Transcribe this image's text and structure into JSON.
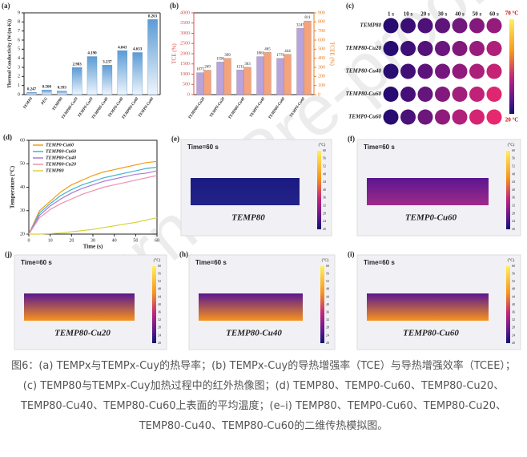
{
  "watermark": "Journal Pre-proof",
  "chart_data": [
    {
      "type": "bar",
      "panel_label": "(a)",
      "y_label": "Thermal Conductivity (W/(m·K))",
      "categories": [
        "TEMP0",
        "PEG",
        "TEMP80",
        "TEMP80-Cu20",
        "TEMP0-Cu20",
        "TEMP80-Cu40",
        "TEMP0-Cu40",
        "TEMP80-Cu60",
        "TEMP0-Cu60"
      ],
      "values": [
        0.247,
        0.5,
        0.393,
        2.983,
        4.19,
        3.237,
        4.843,
        4.633,
        8.263
      ],
      "value_labels": [
        "0.247",
        "0.500",
        "0.393",
        "2.983",
        "4.190",
        "3.237",
        "4.843",
        "4.633",
        "8.263"
      ],
      "color": "#5b9bd5",
      "ylim": [
        0,
        9
      ],
      "yticks": [
        0,
        1,
        2,
        3,
        4,
        5,
        6,
        7,
        8,
        9
      ]
    },
    {
      "type": "bar",
      "panel_label": "(b)",
      "categories": [
        "TEMP80-Cu20",
        "TEMP0-Cu20",
        "TEMP80-Cu40",
        "TEMP0-Cu40",
        "TEMP80-Cu60",
        "TEMP0-Cu60"
      ],
      "series": [
        {
          "name": "TCE (%)",
          "color": "#b9a3dc",
          "values": [
            1075,
            1596,
            1211,
            1861,
            1776,
            3245
          ]
        },
        {
          "name": "TCEE (%)",
          "color": "#f4a37c",
          "axis": "y2",
          "values": [
            269,
            399,
            303,
            465,
            444,
            811
          ]
        }
      ],
      "ylim": [
        0,
        4000
      ],
      "yticks": [
        0,
        500,
        1000,
        1500,
        2000,
        2500,
        3000,
        3500,
        4000
      ],
      "y2lim": [
        0,
        900
      ],
      "y2ticks": [
        0,
        100,
        200,
        300,
        400,
        500,
        600,
        700,
        800,
        900
      ]
    },
    {
      "type": "line",
      "panel_label": "(d)",
      "x_label": "Time (s)",
      "y_label": "Temperature (°C)",
      "x": [
        0,
        5,
        10,
        15,
        20,
        25,
        30,
        35,
        40,
        45,
        50,
        55,
        60
      ],
      "series": [
        {
          "name": "TEMP0-Cu60",
          "color": "#f39c12",
          "values": [
            20,
            30,
            34,
            38,
            41,
            43,
            45,
            46.5,
            47.5,
            48.5,
            49.5,
            50.5,
            51
          ]
        },
        {
          "name": "TEMP80-Cu60",
          "color": "#3fb6c8",
          "values": [
            20,
            29,
            33,
            36.5,
            39,
            41,
            42.5,
            44,
            45,
            46,
            47,
            48,
            48.5
          ]
        },
        {
          "name": "TEMP80-Cu40",
          "color": "#a97ad8",
          "values": [
            20,
            28,
            32,
            35,
            37.5,
            39.5,
            41,
            42.5,
            43.5,
            44.5,
            45.5,
            46,
            47
          ]
        },
        {
          "name": "TEMP80-Cu20",
          "color": "#f08fb0",
          "values": [
            20,
            27,
            30.5,
            33,
            35,
            37,
            38.5,
            40,
            41,
            42,
            43,
            44,
            45
          ]
        },
        {
          "name": "TEMP80",
          "color": "#d9d43a",
          "values": [
            20,
            20,
            20.2,
            20.5,
            21,
            21.5,
            22,
            22.8,
            23.5,
            24.3,
            25,
            26,
            27
          ]
        }
      ],
      "xlim": [
        0,
        60
      ],
      "xticks": [
        0,
        10,
        20,
        30,
        40,
        50,
        60
      ],
      "ylim": [
        20,
        60
      ],
      "yticks": [
        20,
        30,
        40,
        50,
        60
      ]
    }
  ],
  "ir_image": {
    "panel_label": "(c)",
    "times": [
      "1 s",
      "10 s",
      "20 s",
      "30 s",
      "40 s",
      "50 s",
      "60 s"
    ],
    "rows": [
      "TEMP80",
      "TEMP80-Cu20",
      "TEMP80-Cu40",
      "TEMP80-Cu60",
      "TEMP0-Cu60"
    ],
    "scale_top": "70 °C",
    "scale_bottom": "20 °C"
  },
  "simulations": {
    "colorbar_unit": "(°C)",
    "colorbar_ticks": [
      "60",
      "56",
      "52",
      "48",
      "44",
      "40",
      "36",
      "32",
      "28",
      "24",
      "20"
    ],
    "panels": [
      {
        "label": "(e)",
        "time": "Time=60 s",
        "name": "TEMP80"
      },
      {
        "label": "(f)",
        "time": "Time=60 s",
        "name": "TEMP0-Cu60"
      },
      {
        "label": "(j)",
        "time": "Time=60 s",
        "name": "TEMP80-Cu20"
      },
      {
        "label": "(h)",
        "time": "Time=60 s",
        "name": "TEMP80-Cu40"
      },
      {
        "label": "(i)",
        "time": "Time=60 s",
        "name": "TEMP80-Cu60"
      }
    ]
  },
  "caption": "图6：(a) TEMPx与TEMPx-Cuy的热导率；(b) TEMPx-Cuy的导热增强率（TCE）与导热增强效率（TCEE）；(c) TEMP80与TEMPx-Cuy加热过程中的红外热像图；(d) TEMP80、TEMP0-Cu60、TEMP80-Cu20、TEMP80-Cu40、TEMP80-Cu60上表面的平均温度；(e–i) TEMP80、TEMP0-Cu60、TEMP80-Cu20、TEMP80-Cu40、TEMP80-Cu60的二维传热模拟图。"
}
